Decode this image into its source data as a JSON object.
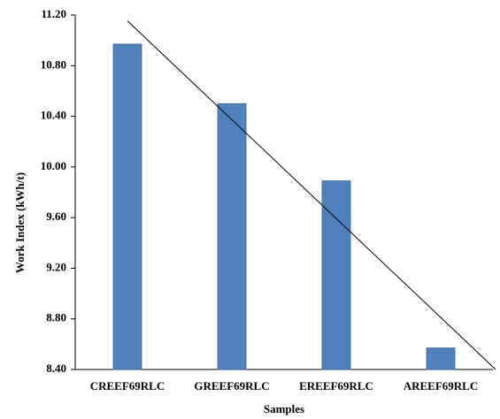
{
  "chart_data": {
    "type": "bar",
    "categories": [
      "CREEF69RLC",
      "GREEF69RLC",
      "EREEF69RLC",
      "AREEF69RLC"
    ],
    "values": [
      10.97,
      10.5,
      9.89,
      8.57
    ],
    "color": "#4f81bd",
    "x_label": "Samples",
    "y_label": "Work Index (kWh/t)",
    "ylim": [
      8.4,
      11.2
    ],
    "yticks": [
      {
        "value": 8.4,
        "label": "8.40"
      },
      {
        "value": 8.8,
        "label": "8.80"
      },
      {
        "value": 9.2,
        "label": "9.20"
      },
      {
        "value": 9.6,
        "label": "9.60"
      },
      {
        "value": 10.0,
        "label": "10.00"
      },
      {
        "value": 10.4,
        "label": "10.40"
      },
      {
        "value": 10.8,
        "label": "10.80"
      },
      {
        "value": 11.2,
        "label": "11.20"
      }
    ],
    "trendline": "linear"
  }
}
